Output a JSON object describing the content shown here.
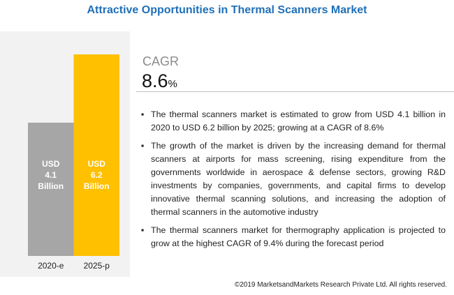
{
  "title": "Attractive Opportunities in Thermal Scanners Market",
  "chart_data": {
    "type": "bar",
    "categories": [
      "2020-e",
      "2025-p"
    ],
    "values": [
      4.1,
      6.2
    ],
    "value_labels": [
      "USD 4.1 Billion",
      "USD 6.2 Billion"
    ],
    "colors": [
      "#a6a6a6",
      "#ffc000"
    ]
  },
  "cagr": {
    "label": "CAGR",
    "value": "8.6",
    "unit": "%"
  },
  "bullets": [
    "The thermal scanners market is estimated to grow from USD 4.1 billion in 2020 to USD 6.2 billion by 2025; growing at a CAGR of 8.6%",
    "The growth of the market is driven by the increasing demand for thermal scanners at airports for mass screening, rising expenditure from the governments worldwide in aerospace & defense sectors, growing R&D investments by companies, governments, and capital firms to develop innovative thermal scanning solutions, and increasing the adoption of thermal scanners in the automotive industry",
    "The thermal scanners market for thermography application is projected to grow at the highest CAGR of 9.4% during the forecast period"
  ],
  "footer": "©2019 MarketsandMarkets Research Private Ltd. All rights reserved."
}
